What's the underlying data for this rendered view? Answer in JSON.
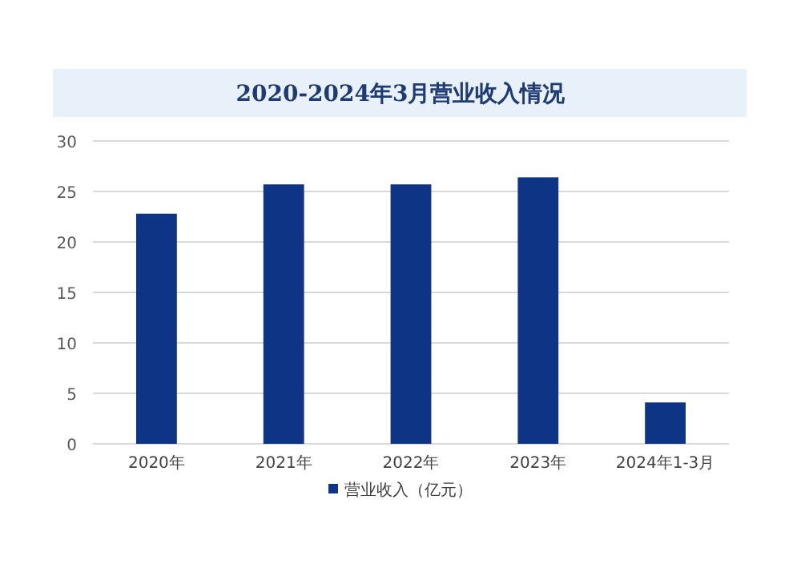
{
  "chart_data": {
    "type": "bar",
    "title": "2020-2024年3月营业收入情况",
    "categories": [
      "2020年",
      "2021年",
      "2022年",
      "2023年",
      "2024年1-3月"
    ],
    "series": [
      {
        "name": "营业收入（亿元）",
        "color": "#0e3585",
        "values": [
          22.8,
          25.7,
          25.7,
          26.4,
          4.1
        ]
      }
    ],
    "ylim": [
      0,
      30
    ],
    "yticks": [
      0,
      5,
      10,
      15,
      20,
      25,
      30
    ],
    "grid": "y",
    "legend": "bottom"
  }
}
